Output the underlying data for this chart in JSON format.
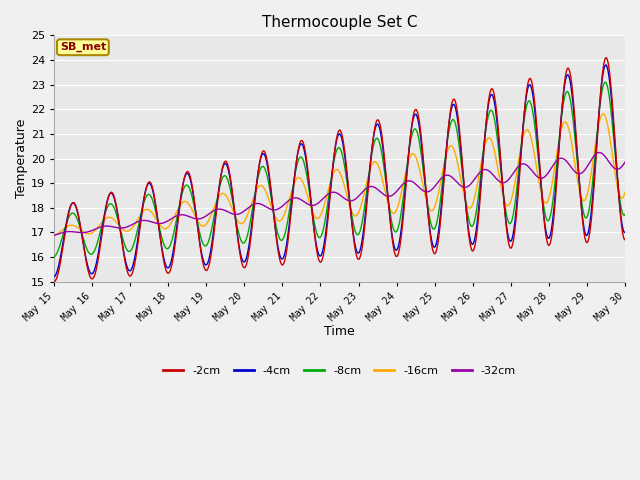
{
  "title": "Thermocouple Set C",
  "xlabel": "Time",
  "ylabel": "Temperature",
  "ylim": [
    15.0,
    25.0
  ],
  "yticks": [
    15.0,
    16.0,
    17.0,
    18.0,
    19.0,
    20.0,
    21.0,
    22.0,
    23.0,
    24.0,
    25.0
  ],
  "colors": {
    "-2cm": "#cc0000",
    "-4cm": "#0000cc",
    "-8cm": "#00aa00",
    "-16cm": "#ffaa00",
    "-32cm": "#9900aa"
  },
  "legend_label": "SB_met",
  "fig_bg": "#f0f0f0",
  "ax_bg": "#e8e8e8",
  "grid_color": "#ffffff"
}
